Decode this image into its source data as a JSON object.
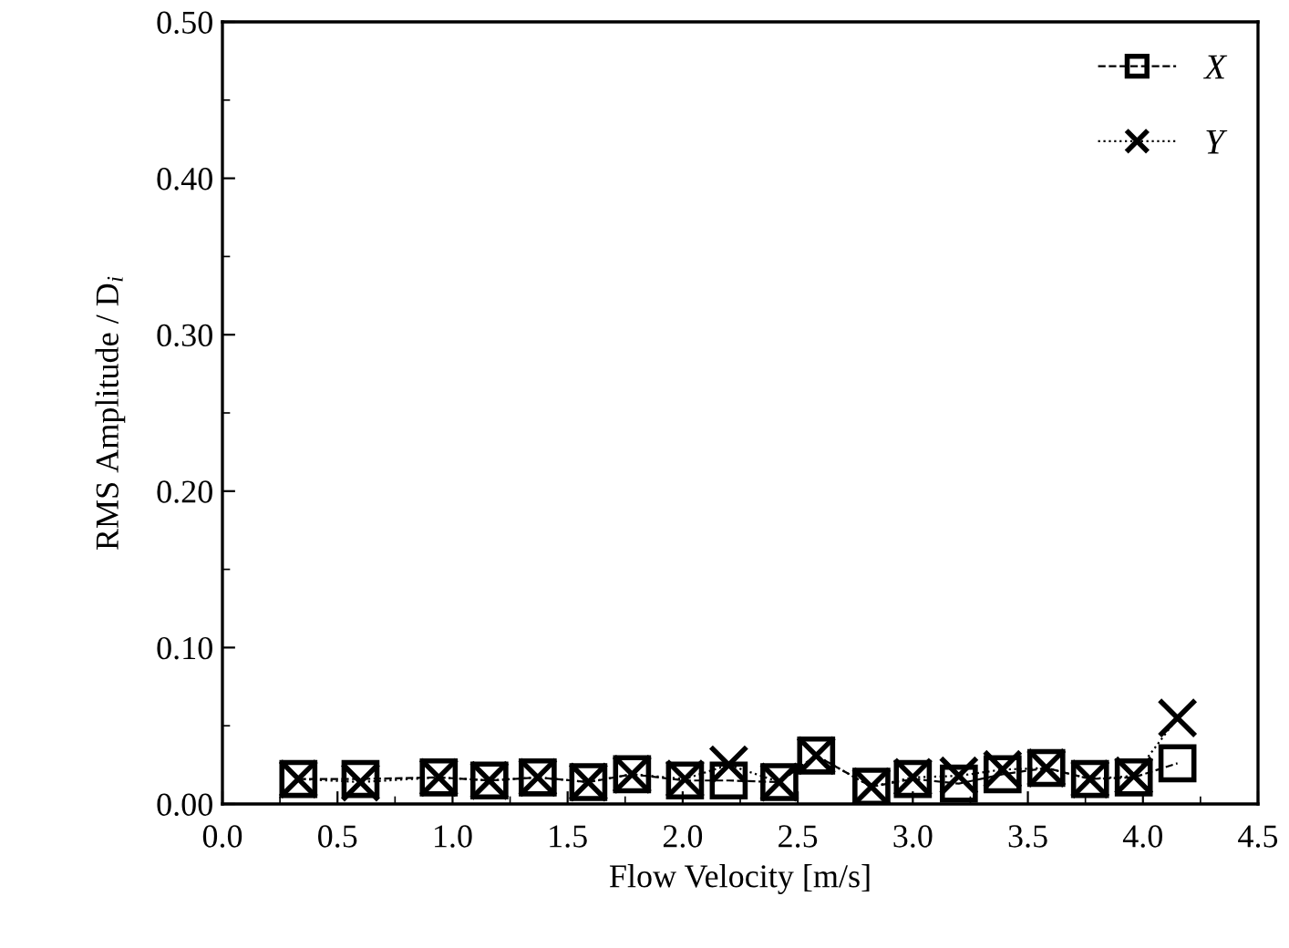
{
  "chart_data": {
    "type": "line",
    "xlabel": "Flow Velocity [m/s]",
    "ylabel": "RMS Amplitude / D$_{i}$",
    "x": [
      0.33,
      0.6,
      0.94,
      1.16,
      1.37,
      1.59,
      1.78,
      2.01,
      2.2,
      2.42,
      2.58,
      2.82,
      3.0,
      3.2,
      3.39,
      3.58,
      3.77,
      3.96,
      4.15
    ],
    "series": [
      {
        "name": "X",
        "color": "#000000",
        "marker": "square",
        "line_style": "dashed",
        "values": [
          0.016,
          0.016,
          0.017,
          0.015,
          0.017,
          0.014,
          0.019,
          0.015,
          0.015,
          0.014,
          0.031,
          0.011,
          0.016,
          0.013,
          0.019,
          0.023,
          0.016,
          0.017,
          0.026
        ]
      },
      {
        "name": "Y",
        "color": "#000000",
        "marker": "cross",
        "line_style": "dotted",
        "values": [
          0.016,
          0.014,
          0.017,
          0.015,
          0.017,
          0.014,
          0.019,
          0.016,
          0.025,
          0.014,
          0.031,
          0.011,
          0.017,
          0.018,
          0.022,
          0.023,
          0.016,
          0.018,
          0.055
        ]
      }
    ],
    "xlim": [
      0.0,
      4.5
    ],
    "xticks": [
      {
        "value": 0.0,
        "label": "0.0"
      },
      {
        "value": 0.5,
        "label": "0.5"
      },
      {
        "value": 1.0,
        "label": "1.0"
      },
      {
        "value": 1.5,
        "label": "1.5"
      },
      {
        "value": 2.0,
        "label": "2.0"
      },
      {
        "value": 2.5,
        "label": "2.5"
      },
      {
        "value": 3.0,
        "label": "3.0"
      },
      {
        "value": 3.5,
        "label": "3.5"
      },
      {
        "value": 4.0,
        "label": "4.0"
      },
      {
        "value": 4.5,
        "label": "4.5"
      }
    ],
    "ylim": [
      0.0,
      0.5
    ],
    "yticks": [
      {
        "value": 0.0,
        "label": "0.00"
      },
      {
        "value": 0.1,
        "label": "0.10"
      },
      {
        "value": 0.2,
        "label": "0.20"
      },
      {
        "value": 0.3,
        "label": "0.30"
      },
      {
        "value": 0.4,
        "label": "0.40"
      },
      {
        "value": 0.5,
        "label": "0.50"
      }
    ],
    "grid": false,
    "legend": "top right"
  }
}
